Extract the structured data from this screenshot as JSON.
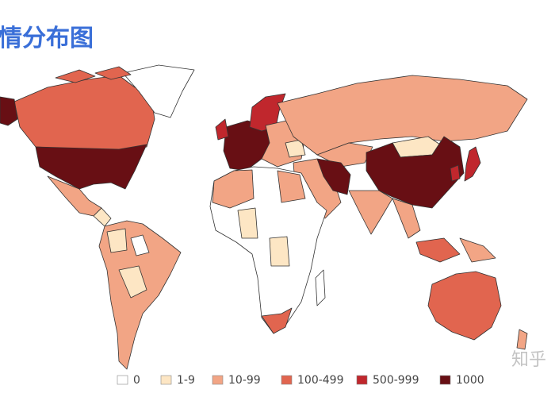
{
  "header": {
    "title": "情分布图"
  },
  "legend": {
    "items": [
      {
        "label": "0",
        "color": "#ffffff"
      },
      {
        "label": "1-9",
        "color": "#fde6c4"
      },
      {
        "label": "10-99",
        "color": "#f2a585"
      },
      {
        "label": "100-499",
        "color": "#e1654f"
      },
      {
        "label": "500-999",
        "color": "#c0272d"
      },
      {
        "label": "1000",
        "color": "#680f14"
      }
    ]
  },
  "watermark": "知乎"
}
